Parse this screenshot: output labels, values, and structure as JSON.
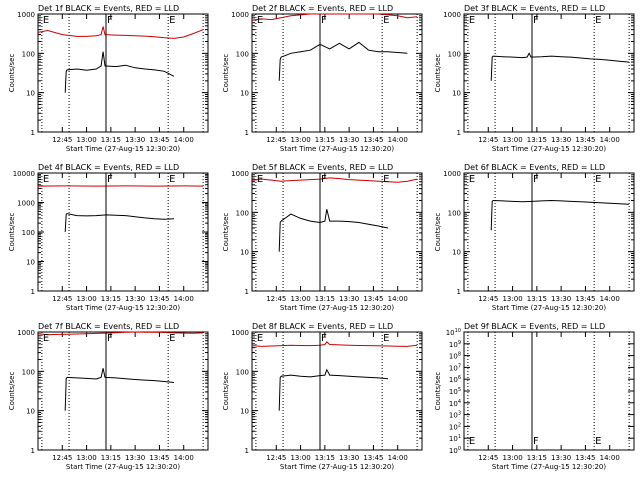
{
  "chart_data": [
    {
      "type": "line",
      "title": "Det 1f BLACK = Events, RED = LLD",
      "xlabel": "Start Time (27-Aug-15 12:30:20)",
      "ylabel": "Counts/sec",
      "yscale": "log",
      "ylim": [
        1,
        1000
      ],
      "yticks": [
        "1",
        "10",
        "100",
        "1000"
      ],
      "xlim": [
        12.5,
        14.25
      ],
      "xticks": [
        "12:45",
        "13:00",
        "13:15",
        "13:30",
        "13:45",
        "14:00"
      ],
      "markers": [
        {
          "label": "E",
          "x": 12.54,
          "style": "dotted"
        },
        {
          "label": "F",
          "x": 13.2,
          "style": "solid"
        },
        {
          "label": "E",
          "x": 13.84,
          "style": "dotted"
        }
      ],
      "extra_lines": [
        {
          "x": 12.82,
          "style": "dotted"
        },
        {
          "x": 14.2,
          "style": "dotted"
        }
      ],
      "series": [
        {
          "name": "Events",
          "color": "#000000",
          "x": [
            12.78,
            12.79,
            12.8,
            12.9,
            13.0,
            13.1,
            13.15,
            13.17,
            13.19,
            13.3,
            13.4,
            13.5,
            13.6,
            13.7,
            13.8,
            13.9
          ],
          "y": [
            10,
            35,
            38,
            40,
            37,
            40,
            48,
            110,
            48,
            46,
            50,
            43,
            40,
            38,
            35,
            26
          ]
        },
        {
          "name": "LLD",
          "color": "#cc0000",
          "x": [
            12.5,
            12.6,
            12.75,
            12.9,
            13.0,
            13.1,
            13.15,
            13.17,
            13.19,
            13.3,
            13.4,
            13.5,
            13.6,
            13.7,
            13.8,
            13.9,
            14.0,
            14.1,
            14.2
          ],
          "y": [
            340,
            380,
            300,
            270,
            270,
            280,
            300,
            480,
            300,
            290,
            285,
            280,
            275,
            265,
            250,
            240,
            260,
            320,
            400
          ]
        }
      ]
    },
    {
      "type": "line",
      "title": "Det 2f BLACK = Events, RED = LLD",
      "xlabel": "Start Time (27-Aug-15 12:30:20)",
      "ylabel": "Counts/sec",
      "yscale": "log",
      "ylim": [
        1,
        1000
      ],
      "yticks": [
        "1",
        "10",
        "100",
        "1000"
      ],
      "xlim": [
        12.5,
        14.25
      ],
      "xticks": [
        "12:45",
        "13:00",
        "13:15",
        "13:30",
        "13:45",
        "14:00"
      ],
      "markers": [
        {
          "label": "E",
          "x": 12.54,
          "style": "dotted"
        },
        {
          "label": "F",
          "x": 13.2,
          "style": "solid"
        },
        {
          "label": "E",
          "x": 13.84,
          "style": "dotted"
        }
      ],
      "extra_lines": [
        {
          "x": 12.82,
          "style": "dotted"
        },
        {
          "x": 14.2,
          "style": "dotted"
        }
      ],
      "series": [
        {
          "name": "Events",
          "color": "#000000",
          "x": [
            12.78,
            12.79,
            12.8,
            12.9,
            13.0,
            13.1,
            13.2,
            13.3,
            13.4,
            13.5,
            13.6,
            13.7,
            13.8,
            13.9,
            14.0,
            14.1
          ],
          "y": [
            20,
            70,
            80,
            100,
            110,
            120,
            170,
            130,
            180,
            130,
            190,
            120,
            110,
            110,
            105,
            100
          ]
        },
        {
          "name": "LLD",
          "color": "#cc0000",
          "x": [
            12.5,
            12.6,
            12.7,
            12.8,
            12.9,
            13.0,
            13.1,
            13.2,
            13.3,
            13.4,
            13.5,
            13.6,
            13.7,
            13.8,
            13.9,
            14.0,
            14.1,
            14.2
          ],
          "y": [
            700,
            750,
            720,
            800,
            900,
            950,
            1000,
            1000,
            1000,
            1000,
            1000,
            1000,
            1000,
            1000,
            950,
            900,
            800,
            850
          ]
        }
      ]
    },
    {
      "type": "line",
      "title": "Det 3f BLACK = Events, RED = LLD",
      "xlabel": "Start Time (27-Aug-15 12:30:20)",
      "ylabel": "Counts/sec",
      "yscale": "log",
      "ylim": [
        1,
        1000
      ],
      "yticks": [
        "1",
        "10",
        "100",
        "1000"
      ],
      "xlim": [
        12.5,
        14.25
      ],
      "xticks": [
        "12:45",
        "13:00",
        "13:15",
        "13:30",
        "13:45",
        "14:00"
      ],
      "markers": [
        {
          "label": "E",
          "x": 12.54,
          "style": "dotted"
        },
        {
          "label": "F",
          "x": 13.2,
          "style": "solid"
        },
        {
          "label": "E",
          "x": 13.84,
          "style": "dotted"
        }
      ],
      "extra_lines": [
        {
          "x": 12.82,
          "style": "dotted"
        },
        {
          "x": 14.2,
          "style": "dotted"
        }
      ],
      "series": [
        {
          "name": "Events",
          "color": "#000000",
          "x": [
            12.78,
            12.79,
            12.8,
            12.9,
            13.0,
            13.1,
            13.15,
            13.17,
            13.19,
            13.3,
            13.4,
            13.5,
            13.6,
            13.7,
            13.8,
            13.9,
            14.0,
            14.1,
            14.2
          ],
          "y": [
            20,
            80,
            85,
            82,
            80,
            78,
            80,
            100,
            80,
            82,
            85,
            82,
            80,
            76,
            72,
            70,
            67,
            63,
            60
          ]
        }
      ]
    },
    {
      "type": "line",
      "title": "Det 4f BLACK = Events, RED = LLD",
      "xlabel": "Start Time (27-Aug-15 12:30:20)",
      "ylabel": "Counts/sec",
      "yscale": "log",
      "ylim": [
        1,
        10000
      ],
      "yticks": [
        "1",
        "10",
        "100",
        "1000",
        "10000"
      ],
      "xlim": [
        12.5,
        14.25
      ],
      "xticks": [
        "12:45",
        "13:00",
        "13:15",
        "13:30",
        "13:45",
        "14:00"
      ],
      "markers": [
        {
          "label": "E",
          "x": 12.54,
          "style": "dotted"
        },
        {
          "label": "F",
          "x": 13.2,
          "style": "solid"
        },
        {
          "label": "E",
          "x": 13.84,
          "style": "dotted"
        }
      ],
      "extra_lines": [
        {
          "x": 12.82,
          "style": "dotted"
        },
        {
          "x": 14.2,
          "style": "dotted"
        }
      ],
      "series": [
        {
          "name": "Events",
          "color": "#000000",
          "x": [
            12.78,
            12.79,
            12.8,
            12.9,
            13.0,
            13.1,
            13.2,
            13.3,
            13.4,
            13.5,
            13.6,
            13.7,
            13.8,
            13.9
          ],
          "y": [
            100,
            400,
            420,
            360,
            350,
            360,
            380,
            370,
            360,
            330,
            300,
            280,
            270,
            280
          ]
        },
        {
          "name": "LLD",
          "color": "#cc0000",
          "x": [
            12.5,
            12.8,
            13.1,
            13.4,
            13.7,
            14.0,
            14.2
          ],
          "y": [
            3600,
            3650,
            3600,
            3650,
            3600,
            3650,
            3600
          ]
        }
      ]
    },
    {
      "type": "line",
      "title": "Det 5f BLACK = Events, RED = LLD",
      "xlabel": "Start Time (27-Aug-15 12:30:20)",
      "ylabel": "Counts/sec",
      "yscale": "log",
      "ylim": [
        1,
        1000
      ],
      "yticks": [
        "1",
        "10",
        "100",
        "1000"
      ],
      "xlim": [
        12.5,
        14.25
      ],
      "xticks": [
        "12:45",
        "13:00",
        "13:15",
        "13:30",
        "13:45",
        "14:00"
      ],
      "markers": [
        {
          "label": "E",
          "x": 12.54,
          "style": "dotted"
        },
        {
          "label": "F",
          "x": 13.2,
          "style": "solid"
        },
        {
          "label": "E",
          "x": 13.84,
          "style": "dotted"
        }
      ],
      "extra_lines": [
        {
          "x": 12.82,
          "style": "dotted"
        },
        {
          "x": 14.2,
          "style": "dotted"
        }
      ],
      "series": [
        {
          "name": "Events",
          "color": "#000000",
          "x": [
            12.78,
            12.79,
            12.8,
            12.9,
            13.0,
            13.1,
            13.2,
            13.25,
            13.27,
            13.3,
            13.4,
            13.5,
            13.6,
            13.7,
            13.8,
            13.9
          ],
          "y": [
            10,
            55,
            60,
            90,
            70,
            60,
            55,
            60,
            120,
            60,
            60,
            58,
            55,
            50,
            45,
            40
          ]
        },
        {
          "name": "LLD",
          "color": "#cc0000",
          "x": [
            12.5,
            12.6,
            12.7,
            12.8,
            12.9,
            13.0,
            13.1,
            13.2,
            13.3,
            13.4,
            13.5,
            13.6,
            13.7,
            13.8,
            13.9,
            14.0,
            14.1,
            14.2
          ],
          "y": [
            650,
            700,
            660,
            620,
            640,
            660,
            680,
            700,
            750,
            720,
            680,
            660,
            640,
            620,
            600,
            580,
            620,
            700
          ]
        }
      ]
    },
    {
      "type": "line",
      "title": "Det 6f BLACK = Events, RED = LLD",
      "xlabel": "Start Time (27-Aug-15 12:30:20)",
      "ylabel": "Counts/sec",
      "yscale": "log",
      "ylim": [
        1,
        1000
      ],
      "yticks": [
        "1",
        "10",
        "100",
        "1000"
      ],
      "xlim": [
        12.5,
        14.25
      ],
      "xticks": [
        "12:45",
        "13:00",
        "13:15",
        "13:30",
        "13:45",
        "14:00"
      ],
      "markers": [
        {
          "label": "E",
          "x": 12.54,
          "style": "dotted"
        },
        {
          "label": "F",
          "x": 13.2,
          "style": "solid"
        },
        {
          "label": "E",
          "x": 13.84,
          "style": "dotted"
        }
      ],
      "extra_lines": [
        {
          "x": 12.82,
          "style": "dotted"
        },
        {
          "x": 14.2,
          "style": "dotted"
        }
      ],
      "series": [
        {
          "name": "Events",
          "color": "#000000",
          "x": [
            12.78,
            12.79,
            12.8,
            12.9,
            13.0,
            13.1,
            13.2,
            13.3,
            13.4,
            13.5,
            13.6,
            13.7,
            13.8,
            13.9,
            14.0,
            14.1,
            14.2
          ],
          "y": [
            35,
            190,
            200,
            195,
            190,
            185,
            190,
            195,
            200,
            195,
            190,
            185,
            180,
            175,
            170,
            165,
            160
          ]
        }
      ]
    },
    {
      "type": "line",
      "title": "Det 7f BLACK = Events, RED = LLD",
      "xlabel": "Start Time (27-Aug-15 12:30:20)",
      "ylabel": "Counts/sec",
      "yscale": "log",
      "ylim": [
        1,
        1000
      ],
      "yticks": [
        "1",
        "10",
        "100",
        "1000"
      ],
      "xlim": [
        12.5,
        14.25
      ],
      "xticks": [
        "12:45",
        "13:00",
        "13:15",
        "13:30",
        "13:45",
        "14:00"
      ],
      "markers": [
        {
          "label": "E",
          "x": 12.54,
          "style": "dotted"
        },
        {
          "label": "F",
          "x": 13.2,
          "style": "solid"
        },
        {
          "label": "E",
          "x": 13.84,
          "style": "dotted"
        }
      ],
      "extra_lines": [
        {
          "x": 12.82,
          "style": "dotted"
        },
        {
          "x": 14.2,
          "style": "dotted"
        }
      ],
      "series": [
        {
          "name": "Events",
          "color": "#000000",
          "x": [
            12.78,
            12.79,
            12.8,
            12.9,
            13.0,
            13.1,
            13.15,
            13.17,
            13.19,
            13.3,
            13.4,
            13.5,
            13.6,
            13.7,
            13.8,
            13.9
          ],
          "y": [
            10,
            65,
            70,
            68,
            66,
            64,
            70,
            120,
            70,
            68,
            65,
            62,
            60,
            58,
            55,
            52
          ]
        },
        {
          "name": "LLD",
          "color": "#cc0000",
          "x": [
            12.5,
            12.6,
            12.7,
            12.8,
            12.9,
            13.0,
            13.1,
            13.2,
            13.3,
            13.4,
            13.5,
            13.6,
            13.7,
            13.8,
            13.9,
            14.0,
            14.1,
            14.2
          ],
          "y": [
            900,
            850,
            870,
            880,
            890,
            900,
            920,
            940,
            960,
            980,
            1000,
            990,
            980,
            970,
            950,
            940,
            930,
            950
          ]
        }
      ]
    },
    {
      "type": "line",
      "title": "Det 8f BLACK = Events, RED = LLD",
      "xlabel": "Start Time (27-Aug-15 12:30:20)",
      "ylabel": "Counts/sec",
      "yscale": "log",
      "ylim": [
        1,
        1000
      ],
      "yticks": [
        "1",
        "10",
        "100",
        "1000"
      ],
      "xlim": [
        12.5,
        14.25
      ],
      "xticks": [
        "12:45",
        "13:00",
        "13:15",
        "13:30",
        "13:45",
        "14:00"
      ],
      "markers": [
        {
          "label": "E",
          "x": 12.54,
          "style": "dotted"
        },
        {
          "label": "F",
          "x": 13.2,
          "style": "solid"
        },
        {
          "label": "E",
          "x": 13.84,
          "style": "dotted"
        }
      ],
      "extra_lines": [
        {
          "x": 12.82,
          "style": "dotted"
        },
        {
          "x": 14.2,
          "style": "dotted"
        }
      ],
      "series": [
        {
          "name": "Events",
          "color": "#000000",
          "x": [
            12.78,
            12.79,
            12.8,
            12.9,
            13.0,
            13.1,
            13.2,
            13.25,
            13.27,
            13.3,
            13.4,
            13.5,
            13.6,
            13.7,
            13.8,
            13.9
          ],
          "y": [
            10,
            70,
            75,
            80,
            75,
            72,
            78,
            80,
            110,
            80,
            78,
            75,
            72,
            70,
            68,
            65
          ]
        },
        {
          "name": "LLD",
          "color": "#cc0000",
          "x": [
            12.5,
            12.6,
            12.7,
            12.8,
            12.9,
            13.0,
            13.1,
            13.2,
            13.25,
            13.27,
            13.3,
            13.4,
            13.5,
            13.6,
            13.7,
            13.8,
            13.9,
            14.0,
            14.1,
            14.2
          ],
          "y": [
            450,
            430,
            440,
            450,
            460,
            455,
            450,
            460,
            480,
            560,
            480,
            470,
            460,
            455,
            450,
            445,
            440,
            435,
            430,
            460
          ]
        }
      ]
    },
    {
      "type": "line",
      "title": "Det 9f BLACK = Events, RED = LLD",
      "xlabel": "Start Time (27-Aug-15 12:30:20)",
      "ylabel": "Counts/sec",
      "yscale": "log",
      "ylim": [
        1,
        10000000000
      ],
      "ytick_exps": [
        "0",
        "1",
        "2",
        "3",
        "4",
        "5",
        "6",
        "7",
        "8",
        "9",
        "10"
      ],
      "xlim": [
        12.5,
        14.25
      ],
      "xticks": [
        "12:45",
        "13:00",
        "13:15",
        "13:30",
        "13:45",
        "14:00"
      ],
      "markers": [
        {
          "label": "E",
          "x": 12.54,
          "style": "dotted"
        },
        {
          "label": "F",
          "x": 13.2,
          "style": "solid"
        },
        {
          "label": "E",
          "x": 13.84,
          "style": "dotted"
        }
      ],
      "extra_lines": [
        {
          "x": 12.82,
          "style": "dotted"
        },
        {
          "x": 14.2,
          "style": "dotted"
        }
      ],
      "series": []
    }
  ]
}
